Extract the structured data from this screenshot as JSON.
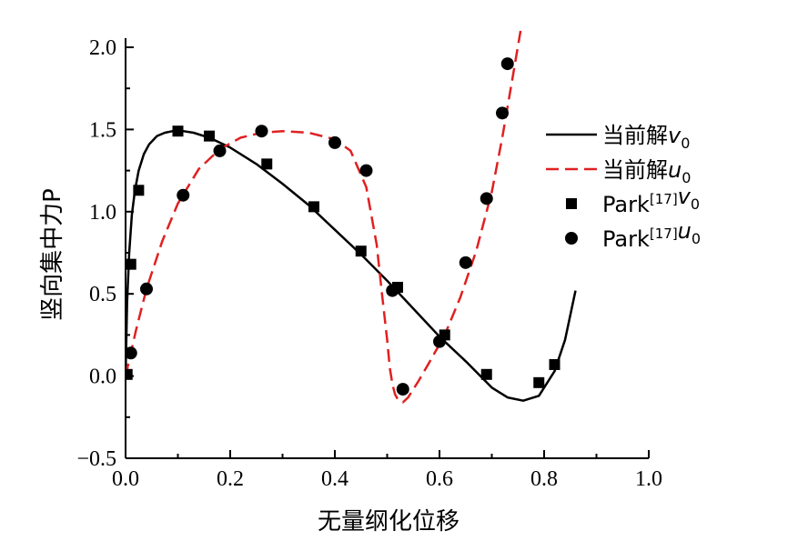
{
  "chart_data": {
    "type": "line",
    "xlabel": "无量纲化位移",
    "ylabel": "竖向集中力P",
    "xlim": [
      0.0,
      1.0
    ],
    "ylim": [
      -0.5,
      2.0
    ],
    "x_ticks": [
      0.0,
      0.2,
      0.4,
      0.6,
      0.8,
      1.0
    ],
    "y_ticks": [
      -0.5,
      0.0,
      0.5,
      1.0,
      1.5,
      2.0
    ],
    "x_tick_labels": [
      "0.0",
      "0.2",
      "0.4",
      "0.6",
      "0.8",
      "1.0"
    ],
    "y_tick_labels": [
      "−0.5",
      "0.0",
      "0.5",
      "1.0",
      "1.5",
      "2.0"
    ],
    "legend_position": "right",
    "series": [
      {
        "name": "当前解v0",
        "legend": {
          "prefix": "当前解",
          "sup": "",
          "var": "v",
          "sub": "0"
        },
        "kind": "line",
        "style": "solid",
        "color": "#000000",
        "x": [
          0.0,
          0.003,
          0.007,
          0.012,
          0.018,
          0.025,
          0.035,
          0.045,
          0.06,
          0.075,
          0.09,
          0.11,
          0.13,
          0.16,
          0.2,
          0.25,
          0.3,
          0.35,
          0.4,
          0.45,
          0.5,
          0.55,
          0.6,
          0.65,
          0.7,
          0.73,
          0.76,
          0.79,
          0.82,
          0.84,
          0.86
        ],
        "y": [
          0.0,
          0.45,
          0.75,
          0.98,
          1.13,
          1.25,
          1.35,
          1.41,
          1.46,
          1.48,
          1.49,
          1.49,
          1.48,
          1.45,
          1.39,
          1.29,
          1.17,
          1.04,
          0.89,
          0.74,
          0.58,
          0.41,
          0.24,
          0.09,
          -0.07,
          -0.13,
          -0.15,
          -0.12,
          0.03,
          0.22,
          0.52
        ]
      },
      {
        "name": "当前解u0",
        "legend": {
          "prefix": "当前解",
          "sup": "",
          "var": "u",
          "sub": "0"
        },
        "kind": "line",
        "style": "dashed",
        "color": "#e02020",
        "x": [
          0.0,
          0.005,
          0.01,
          0.02,
          0.04,
          0.07,
          0.1,
          0.14,
          0.18,
          0.22,
          0.26,
          0.3,
          0.35,
          0.4,
          0.43,
          0.46,
          0.48,
          0.49,
          0.5,
          0.505,
          0.51,
          0.515,
          0.52,
          0.53,
          0.54,
          0.56,
          0.58,
          0.61,
          0.64,
          0.67,
          0.7,
          0.72,
          0.74,
          0.755
        ],
        "y": [
          0.0,
          0.07,
          0.14,
          0.28,
          0.53,
          0.82,
          1.05,
          1.26,
          1.38,
          1.45,
          1.48,
          1.49,
          1.48,
          1.44,
          1.37,
          1.15,
          0.8,
          0.5,
          0.22,
          0.05,
          -0.05,
          -0.11,
          -0.14,
          -0.16,
          -0.13,
          -0.03,
          0.08,
          0.25,
          0.48,
          0.76,
          1.12,
          1.45,
          1.82,
          2.1
        ]
      },
      {
        "name": "Park[17]v0",
        "legend": {
          "prefix": "Park",
          "sup": "[17]",
          "var": "v",
          "sub": "0"
        },
        "kind": "scatter",
        "marker": "square",
        "color": "#000000",
        "x": [
          0.003,
          0.01,
          0.025,
          0.1,
          0.16,
          0.27,
          0.36,
          0.45,
          0.52,
          0.61,
          0.69,
          0.79,
          0.82
        ],
        "y": [
          0.01,
          0.68,
          1.13,
          1.49,
          1.46,
          1.29,
          1.03,
          0.76,
          0.54,
          0.25,
          0.01,
          -0.04,
          0.07
        ]
      },
      {
        "name": "Park[17]u0",
        "legend": {
          "prefix": "Park",
          "sup": "[17]",
          "var": "u",
          "sub": "0"
        },
        "kind": "scatter",
        "marker": "circle",
        "color": "#000000",
        "x": [
          0.01,
          0.04,
          0.11,
          0.18,
          0.26,
          0.4,
          0.46,
          0.51,
          0.53,
          0.6,
          0.65,
          0.69,
          0.72,
          0.73
        ],
        "y": [
          0.14,
          0.53,
          1.1,
          1.37,
          1.49,
          1.42,
          1.25,
          0.52,
          -0.08,
          0.21,
          0.69,
          1.08,
          1.6,
          1.9
        ]
      }
    ]
  }
}
